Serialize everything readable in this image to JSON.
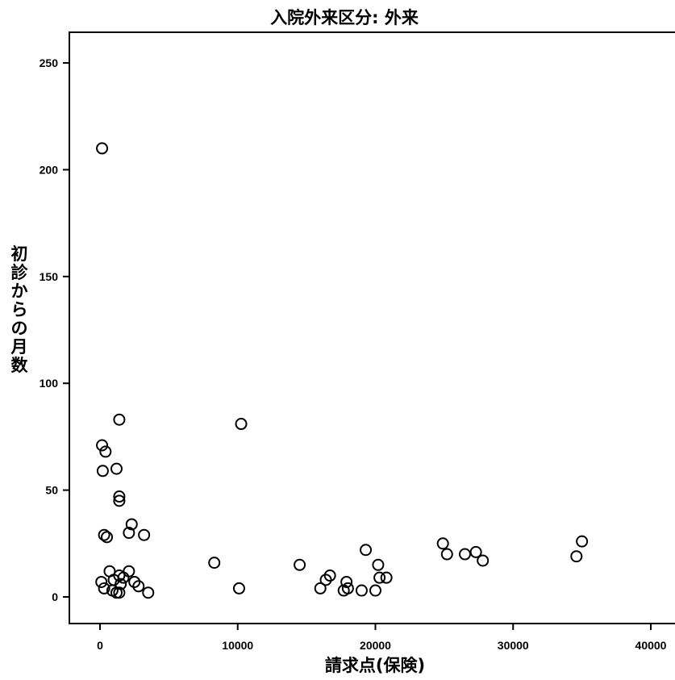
{
  "chart_data": {
    "type": "scatter",
    "title": "入院外来区分: 外来",
    "xlabel": "請求点(保険)",
    "ylabel": "初診からの月数",
    "xlim": [
      -2000,
      41500
    ],
    "ylim": [
      -12,
      262
    ],
    "xticks": [
      0,
      10000,
      20000,
      30000,
      40000
    ],
    "xtick_labels": [
      "0",
      "10000",
      "20000",
      "30000",
      "40000"
    ],
    "yticks": [
      0,
      50,
      100,
      150,
      200,
      250
    ],
    "ytick_labels": [
      "0",
      "50",
      "100",
      "150",
      "200",
      "250"
    ],
    "grid": false,
    "legend": "none",
    "marker": "open-circle",
    "series": [
      {
        "points": [
          [
            150,
            210
          ],
          [
            1400,
            83
          ],
          [
            10250,
            81
          ],
          [
            150,
            71
          ],
          [
            400,
            68
          ],
          [
            1200,
            60
          ],
          [
            200,
            59
          ],
          [
            1400,
            47
          ],
          [
            1400,
            45
          ],
          [
            2300,
            34
          ],
          [
            2100,
            30
          ],
          [
            3200,
            29
          ],
          [
            300,
            29
          ],
          [
            500,
            28
          ],
          [
            35000,
            26
          ],
          [
            24900,
            25
          ],
          [
            19300,
            22
          ],
          [
            27300,
            21
          ],
          [
            25200,
            20
          ],
          [
            26500,
            20
          ],
          [
            34600,
            19
          ],
          [
            27800,
            17
          ],
          [
            8300,
            16
          ],
          [
            14500,
            15
          ],
          [
            20200,
            15
          ],
          [
            2100,
            12
          ],
          [
            700,
            12
          ],
          [
            1400,
            10
          ],
          [
            16700,
            10
          ],
          [
            1700,
            9
          ],
          [
            20300,
            9
          ],
          [
            20800,
            9
          ],
          [
            16400,
            8
          ],
          [
            1000,
            8
          ],
          [
            2500,
            7
          ],
          [
            17900,
            7
          ],
          [
            100,
            7
          ],
          [
            1500,
            6
          ],
          [
            2800,
            5
          ],
          [
            10100,
            4
          ],
          [
            300,
            4
          ],
          [
            16000,
            4
          ],
          [
            18000,
            4
          ],
          [
            19000,
            3
          ],
          [
            20000,
            3
          ],
          [
            17700,
            3
          ],
          [
            900,
            3
          ],
          [
            1400,
            2
          ],
          [
            3500,
            2
          ],
          [
            1200,
            2
          ]
        ]
      }
    ]
  }
}
